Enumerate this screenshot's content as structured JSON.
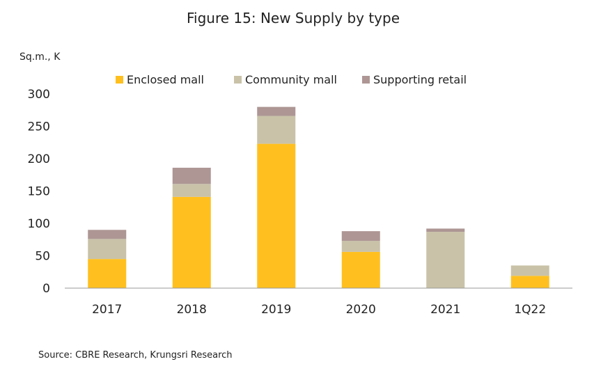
{
  "chart_data": {
    "type": "bar",
    "stacked": true,
    "title": "Figure 15: New Supply by type",
    "ylabel": "Sq.m., K",
    "xlabel": "",
    "categories": [
      "2017",
      "2018",
      "2019",
      "2020",
      "2021",
      "1Q22"
    ],
    "ylim": [
      0,
      300
    ],
    "yticks": [
      0,
      50,
      100,
      150,
      200,
      250,
      300
    ],
    "grid": false,
    "legend_position": "top",
    "series": [
      {
        "name": "Enclosed mall",
        "color": "#FFC01F",
        "values": [
          45,
          141,
          223,
          56,
          0,
          19
        ]
      },
      {
        "name": "Community mall",
        "color": "#C9C2A8",
        "values": [
          31,
          20,
          43,
          17,
          87,
          16
        ]
      },
      {
        "name": "Supporting retail",
        "color": "#AD9694",
        "values": [
          14,
          25,
          14,
          15,
          5,
          0
        ]
      }
    ]
  },
  "source": "Source: CBRE Research, Krungsri Research"
}
